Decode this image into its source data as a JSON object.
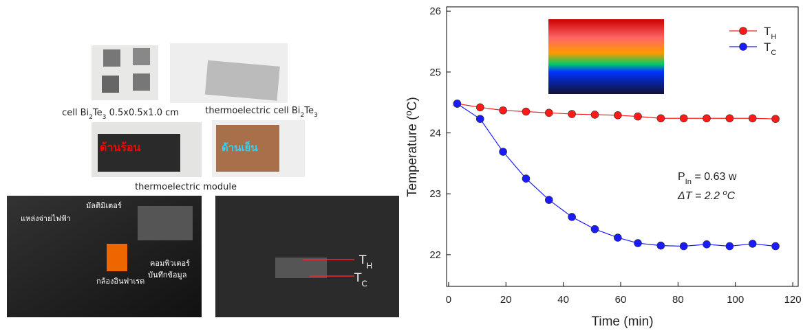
{
  "photos": {
    "captions": [
      [
        {
          "text": "cell Bi"
        },
        {
          "text": "2",
          "sub": true
        },
        {
          "text": "Te"
        },
        {
          "text": "3",
          "sub": true
        },
        {
          "text": " 0.5x0.5x1.0 cm"
        }
      ],
      [
        {
          "text": "thermoelectric cell Bi"
        },
        {
          "text": "2",
          "sub": true
        },
        {
          "text": "Te"
        },
        {
          "text": "3",
          "sub": true
        }
      ],
      [
        {
          "text": "thermoelectric module"
        }
      ]
    ],
    "labels": {
      "hot_side": "ด้านร้อน",
      "cold_side": "ด้านเย็น",
      "power_supply": "แหล่งจ่ายไฟฟ้า",
      "multimeter": "มัลติมิเตอร์",
      "ir_camera": "กล้องอินฟาเรด",
      "computer": "คอมพิวเตอร์",
      "data_logger": "บันทึกข้อมูล"
    },
    "probe_labels": [
      [
        {
          "text": "T"
        },
        {
          "text": "H",
          "sub": true
        }
      ],
      [
        {
          "text": "T"
        },
        {
          "text": "C",
          "sub": true
        }
      ]
    ]
  },
  "chart_data": {
    "type": "line",
    "xlabel": "Time (min)",
    "ylabel": [
      {
        "text": "Temperature ("
      },
      {
        "text": "o",
        "sup": true
      },
      {
        "text": "C)"
      }
    ],
    "x": [
      3,
      11,
      19,
      27,
      35,
      43,
      51,
      59,
      66,
      74,
      82,
      90,
      98,
      106,
      114
    ],
    "series": [
      {
        "name": "T",
        "subscript": "H",
        "color": "#ff1a1a",
        "values": [
          24.48,
          24.42,
          24.37,
          24.35,
          24.33,
          24.31,
          24.3,
          24.29,
          24.27,
          24.24,
          24.24,
          24.24,
          24.24,
          24.24,
          24.23
        ]
      },
      {
        "name": "T",
        "subscript": "C",
        "color": "#1a1aff",
        "values": [
          24.48,
          24.23,
          23.69,
          23.25,
          22.9,
          22.62,
          22.42,
          22.28,
          22.19,
          22.15,
          22.14,
          22.17,
          22.14,
          22.18,
          22.14
        ]
      }
    ],
    "annotations": [
      [
        {
          "text": "P"
        },
        {
          "text": "In",
          "sub": true
        },
        {
          "text": " = 0.63 w"
        }
      ],
      [
        {
          "text": "ΔT = 2.2 "
        },
        {
          "text": "o",
          "sup": true
        },
        {
          "text": "C"
        }
      ]
    ],
    "xlim": [
      -0.7,
      121.9
    ],
    "xticks": [
      0,
      20,
      40,
      60,
      80,
      100,
      120
    ],
    "ylim": [
      21.48,
      26.07
    ],
    "yticks": [
      22,
      23,
      24,
      25,
      26
    ]
  }
}
